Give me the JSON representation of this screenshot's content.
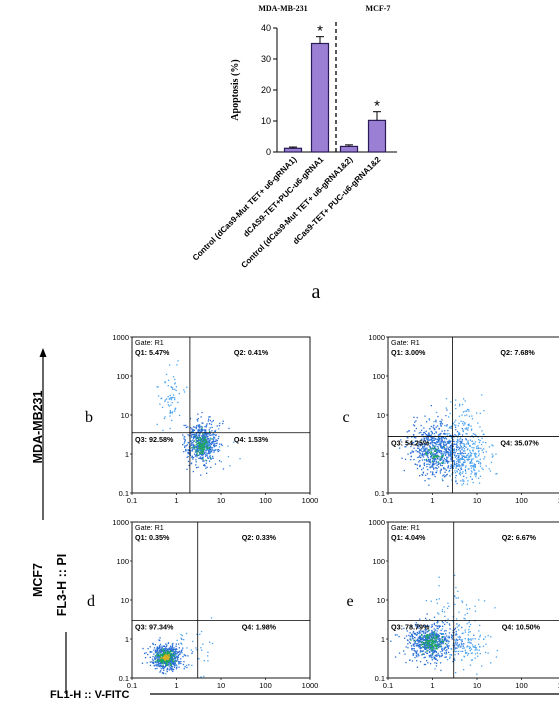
{
  "figure_labels": [
    "a",
    "b",
    "c",
    "d",
    "e"
  ],
  "bar_chart": {
    "group_labels": [
      "MDA-MB-231",
      "MCF-7"
    ],
    "ylabel": "Apoptosis (%)",
    "significance_marker": "*"
  },
  "flow_panels": {
    "row_labels": [
      "MDA-MB231",
      "MCF7"
    ],
    "y_axis_label": "FL3-H :: PI",
    "x_axis_label": "FL1-H :: V-FITC",
    "gate_label": "Gate: R1",
    "tick_labels": [
      "0.1",
      "1",
      "10",
      "100",
      "1000"
    ]
  },
  "chart_data": [
    {
      "type": "bar",
      "title": "",
      "xlabel": "",
      "ylabel": "Apoptosis (%)",
      "ylim": [
        0,
        40
      ],
      "yticks": [
        0,
        10,
        20,
        30,
        40
      ],
      "grid": false,
      "categories": [
        "Control (dCas9-Mut TET+ u6-gRNA1)",
        "dCAS9-TET+PUC-u6-gRNA1",
        "Control (dCas9-Mut TET+ u6-gRNA1&2)",
        "dCas9-TET+ PUC-u6-gRNA1&2"
      ],
      "values": [
        1.2,
        35,
        1.8,
        10.2
      ],
      "errors": [
        0.4,
        2.2,
        0.5,
        2.8
      ],
      "significant": [
        false,
        true,
        false,
        true
      ],
      "bar_color": "#9b7fd4"
    },
    {
      "type": "scatter",
      "panel": "b",
      "cell_line": "MDA-MB231",
      "quadrants": {
        "Q1": "Q1: 5.47%",
        "Q2": "Q2: 0.41%",
        "Q3": "Q3: 92.58%",
        "Q4": "Q4: 1.53%"
      },
      "x_scale": "log",
      "y_scale": "log",
      "xlim": [
        0.1,
        1000
      ],
      "ylim": [
        0.1,
        1000
      ],
      "gate": {
        "x": 2,
        "y": 3.5
      }
    },
    {
      "type": "scatter",
      "panel": "c",
      "cell_line": "MDA-MB231",
      "quadrants": {
        "Q1": "Q1: 3.00%",
        "Q2": "Q2: 7.68%",
        "Q3": "Q3: 54.25%",
        "Q4": "Q4: 35.07%"
      },
      "x_scale": "log",
      "y_scale": "log",
      "xlim": [
        0.1,
        1000
      ],
      "ylim": [
        0.1,
        1000
      ],
      "gate": {
        "x": 2.8,
        "y": 2.8
      }
    },
    {
      "type": "scatter",
      "panel": "d",
      "cell_line": "MCF7",
      "quadrants": {
        "Q1": "Q1: 0.35%",
        "Q2": "Q2: 0.33%",
        "Q3": "Q3: 97.34%",
        "Q4": "Q4: 1.98%"
      },
      "x_scale": "log",
      "y_scale": "log",
      "xlim": [
        0.1,
        1000
      ],
      "ylim": [
        0.1,
        1000
      ],
      "gate": {
        "x": 3,
        "y": 3
      }
    },
    {
      "type": "scatter",
      "panel": "e",
      "cell_line": "MCF7",
      "quadrants": {
        "Q1": "Q1: 4.04%",
        "Q2": "Q2: 6.67%",
        "Q3": "Q3: 78.79%",
        "Q4": "Q4: 10.50%"
      },
      "x_scale": "log",
      "y_scale": "log",
      "xlim": [
        0.1,
        1000
      ],
      "ylim": [
        0.1,
        1000
      ],
      "gate": {
        "x": 3,
        "y": 3
      }
    }
  ]
}
